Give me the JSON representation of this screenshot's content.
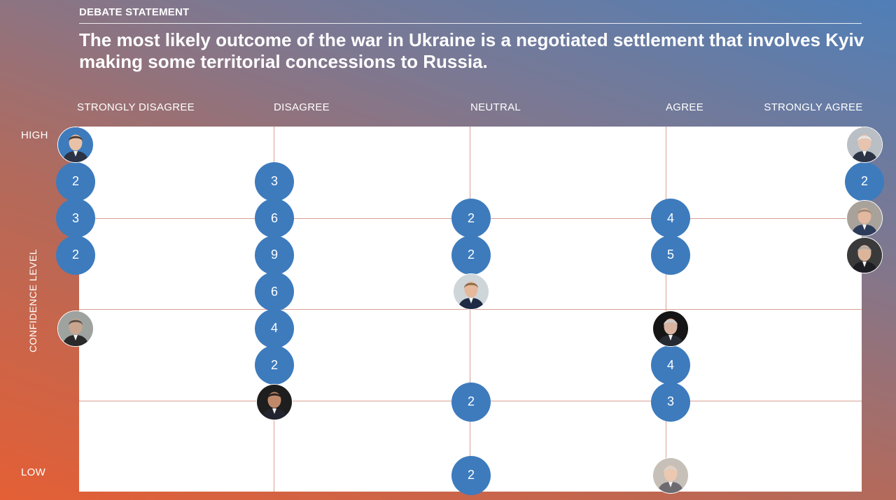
{
  "header": {
    "kicker": "DEBATE STATEMENT",
    "statement": "The most likely outcome of the war in Ukraine is a negotiated settlement that involves Kyiv making some territorial concessions to Russia."
  },
  "columns": [
    "STRONGLY DISAGREE",
    "DISAGREE",
    "NEUTRAL",
    "AGREE",
    "STRONGLY AGREE"
  ],
  "y_axis": {
    "title": "CONFIDENCE LEVEL",
    "high": "HIGH",
    "low": "LOW"
  },
  "bubbles": [
    {
      "col": 0,
      "level": 2,
      "count": "2"
    },
    {
      "col": 0,
      "level": 3,
      "count": "3"
    },
    {
      "col": 0,
      "level": 4,
      "count": "2"
    },
    {
      "col": 1,
      "level": 2,
      "count": "3"
    },
    {
      "col": 1,
      "level": 3,
      "count": "6"
    },
    {
      "col": 1,
      "level": 4,
      "count": "9"
    },
    {
      "col": 1,
      "level": 5,
      "count": "6"
    },
    {
      "col": 1,
      "level": 6,
      "count": "4"
    },
    {
      "col": 1,
      "level": 7,
      "count": "2"
    },
    {
      "col": 2,
      "level": 3,
      "count": "2"
    },
    {
      "col": 2,
      "level": 4,
      "count": "2"
    },
    {
      "col": 2,
      "level": 8,
      "count": "2"
    },
    {
      "col": 2,
      "level": 10,
      "count": "2"
    },
    {
      "col": 3,
      "level": 3,
      "count": "4"
    },
    {
      "col": 3,
      "level": 4,
      "count": "5"
    },
    {
      "col": 3,
      "level": 7,
      "count": "4"
    },
    {
      "col": 3,
      "level": 8,
      "count": "3"
    },
    {
      "col": 4,
      "level": 2,
      "count": "2"
    }
  ],
  "avatars": [
    {
      "col": 0,
      "level": 1,
      "skin": "#e8c1a6",
      "hair": "#4a3a30",
      "bg": "#3d7bbd",
      "suit": "#2b3344"
    },
    {
      "col": 0,
      "level": 6,
      "skin": "#c9a58f",
      "hair": "#5a5048",
      "bg": "#9ea3a0",
      "suit": "#2a2a2a"
    },
    {
      "col": 1,
      "level": 8,
      "skin": "#c08a6a",
      "hair": "#2b2220",
      "bg": "#1e1e1e",
      "suit": "#222530"
    },
    {
      "col": 2,
      "level": 5,
      "skin": "#e6b89c",
      "hair": "#8a6a46",
      "bg": "#cfd6d9",
      "suit": "#1f2b44"
    },
    {
      "col": 3,
      "level": 6,
      "skin": "#d8b4a0",
      "hair": "#cfcfcf",
      "bg": "#151515",
      "suit": "#262a33"
    },
    {
      "col": 3,
      "level": 10,
      "skin": "#ecc8b1",
      "hair": "#d9d4cc",
      "bg": "#c6c0b8",
      "suit": "#6d6a70"
    },
    {
      "col": 4,
      "level": 1,
      "skin": "#e7c4b0",
      "hair": "#e8e8e8",
      "bg": "#b9bfc4",
      "suit": "#2b3344"
    },
    {
      "col": 4,
      "level": 3,
      "skin": "#e2b8a0",
      "hair": "#9c8a78",
      "bg": "#a8a29a",
      "suit": "#2d3b5a"
    },
    {
      "col": 4,
      "level": 4,
      "skin": "#dcb49a",
      "hair": "#a9a9a9",
      "bg": "#3a3a3a",
      "suit": "#1c1c22"
    }
  ]
}
